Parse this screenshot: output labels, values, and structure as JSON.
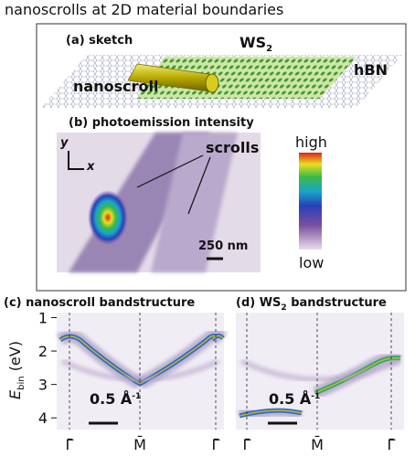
{
  "title": "nanoscrolls at 2D material boundaries",
  "panel_a": {
    "label": "(a) sketch",
    "ws2": {
      "text": "WS",
      "sub": "2"
    },
    "hbn": "hBN",
    "nanoscroll": "nanoscroll"
  },
  "panel_b": {
    "label": "(b) photoemission intensity",
    "axis_y": "y",
    "axis_x": "x",
    "scrolls": "scrolls",
    "scale_bar": "250 nm",
    "colorbar": {
      "high": "high",
      "low": "low"
    }
  },
  "panel_c": {
    "label": "(c) nanoscroll bandstructure"
  },
  "panel_d": {
    "label_start": "(d) WS",
    "label_sub": "2",
    "label_end": " bandstructure"
  },
  "bandstructure": {
    "y_label": {
      "text": "E",
      "sub": "bin",
      "unit": " (eV)"
    },
    "ylim": [
      0.85,
      4.35
    ],
    "yticks": [
      1,
      2,
      3,
      4
    ],
    "scale_bar": {
      "text": "0.5 Å",
      "sup": "-1"
    },
    "xticks": [
      "Γ̄",
      "M̄",
      "Γ̄"
    ]
  }
}
